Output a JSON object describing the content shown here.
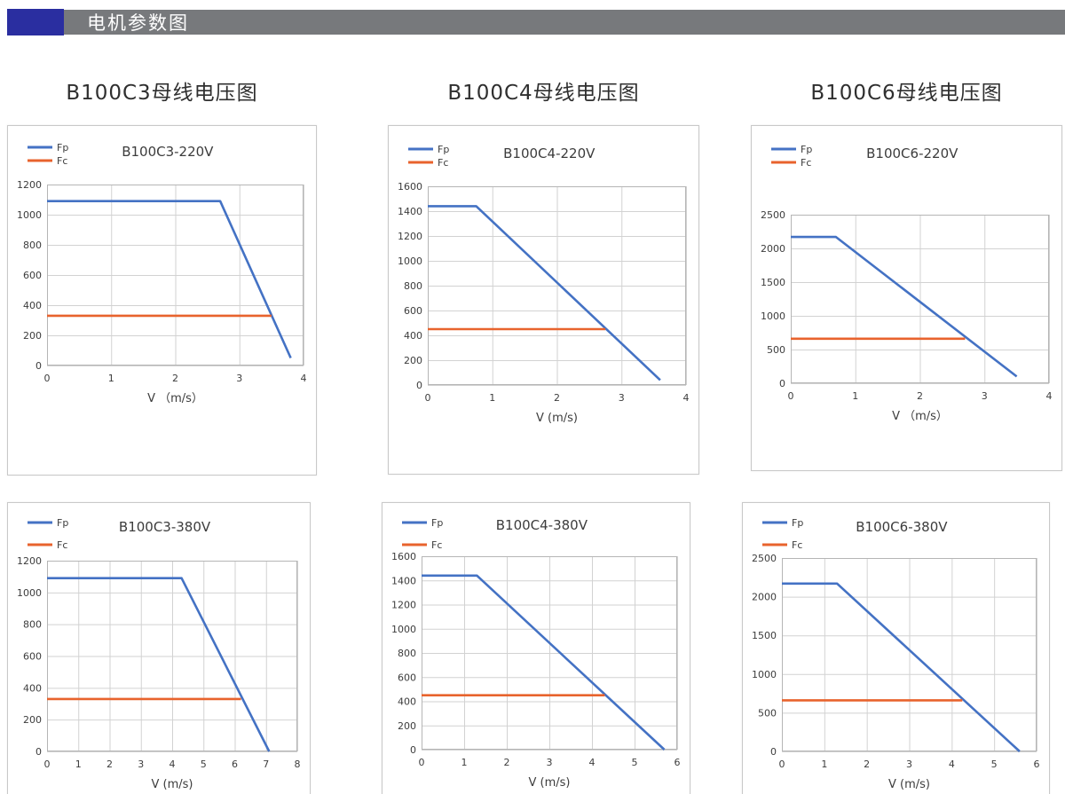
{
  "header": {
    "title": "电机参数图",
    "bar_color": "#77797c",
    "accent_color": "#2a2ea0"
  },
  "section_titles": [
    "B100C3母线电压图",
    "B100C4母线电压图",
    "B100C6母线电压图"
  ],
  "colors": {
    "fp": "#4472C4",
    "fc": "#E8632D",
    "grid": "#d2d2d2",
    "plot_border": "#b5b5b5",
    "tick_text": "#3c3c3c"
  },
  "legend": {
    "fp_label": "Fp",
    "fc_label": "Fc"
  },
  "chart_data": [
    {
      "type": "line",
      "title": "B100C3-220V",
      "xlabel": "V （m/s）",
      "xlim": [
        0,
        4
      ],
      "xticks": [
        0,
        1,
        2,
        3,
        4
      ],
      "ylim": [
        0,
        1200
      ],
      "yticks": [
        0,
        200,
        400,
        600,
        800,
        1000,
        1200
      ],
      "grid": true,
      "legend_position": "top-left",
      "series": [
        {
          "name": "Fp",
          "color": "fp",
          "points": [
            [
              0,
              1090
            ],
            [
              2.7,
              1090
            ],
            [
              3.8,
              50
            ]
          ]
        },
        {
          "name": "Fc",
          "color": "fc",
          "points": [
            [
              0,
              330
            ],
            [
              3.5,
              330
            ]
          ]
        }
      ]
    },
    {
      "type": "line",
      "title": "B100C4-220V",
      "xlabel": "V (m/s)",
      "xlim": [
        0,
        4
      ],
      "xticks": [
        0,
        1,
        2,
        3,
        4
      ],
      "ylim": [
        0,
        1600
      ],
      "yticks": [
        0,
        200,
        400,
        600,
        800,
        1000,
        1200,
        1400,
        1600
      ],
      "grid": true,
      "legend_position": "top-left",
      "series": [
        {
          "name": "Fp",
          "color": "fp",
          "points": [
            [
              0,
              1440
            ],
            [
              0.75,
              1440
            ],
            [
              3.6,
              40
            ]
          ]
        },
        {
          "name": "Fc",
          "color": "fc",
          "points": [
            [
              0,
              450
            ],
            [
              2.75,
              450
            ]
          ]
        }
      ]
    },
    {
      "type": "line",
      "title": "B100C6-220V",
      "xlabel": "V （m/s）",
      "xlim": [
        0,
        4
      ],
      "xticks": [
        0,
        1,
        2,
        3,
        4
      ],
      "ylim": [
        0,
        2500
      ],
      "yticks": [
        0,
        500,
        1000,
        1500,
        2000,
        2500
      ],
      "grid": true,
      "legend_position": "top-left",
      "series": [
        {
          "name": "Fp",
          "color": "fp",
          "points": [
            [
              0,
              2170
            ],
            [
              0.7,
              2170
            ],
            [
              3.5,
              100
            ]
          ]
        },
        {
          "name": "Fc",
          "color": "fc",
          "points": [
            [
              0,
              660
            ],
            [
              2.7,
              660
            ]
          ]
        }
      ]
    },
    {
      "type": "line",
      "title": "B100C3-380V",
      "xlabel": "V (m/s)",
      "xlim": [
        0,
        8
      ],
      "xticks": [
        0,
        1,
        2,
        3,
        4,
        5,
        6,
        7,
        8
      ],
      "ylim": [
        0,
        1200
      ],
      "yticks": [
        0,
        200,
        400,
        600,
        800,
        1000,
        1200
      ],
      "grid": true,
      "legend_position": "top-left",
      "series": [
        {
          "name": "Fp",
          "color": "fp",
          "points": [
            [
              0,
              1090
            ],
            [
              4.3,
              1090
            ],
            [
              7.1,
              0
            ]
          ]
        },
        {
          "name": "Fc",
          "color": "fc",
          "points": [
            [
              0,
              330
            ],
            [
              6.2,
              330
            ]
          ]
        }
      ]
    },
    {
      "type": "line",
      "title": "B100C4-380V",
      "xlabel": "V (m/s)",
      "xlim": [
        0,
        6
      ],
      "xticks": [
        0,
        1,
        2,
        3,
        4,
        5,
        6
      ],
      "ylim": [
        0,
        1600
      ],
      "yticks": [
        0,
        200,
        400,
        600,
        800,
        1000,
        1200,
        1400,
        1600
      ],
      "grid": true,
      "legend_position": "top-left",
      "series": [
        {
          "name": "Fp",
          "color": "fp",
          "points": [
            [
              0,
              1440
            ],
            [
              1.3,
              1440
            ],
            [
              5.7,
              0
            ]
          ]
        },
        {
          "name": "Fc",
          "color": "fc",
          "points": [
            [
              0,
              450
            ],
            [
              4.3,
              450
            ]
          ]
        }
      ]
    },
    {
      "type": "line",
      "title": "B100C6-380V",
      "xlabel": "V (m/s)",
      "xlim": [
        0,
        6
      ],
      "xticks": [
        0,
        1,
        2,
        3,
        4,
        5,
        6
      ],
      "ylim": [
        0,
        2500
      ],
      "yticks": [
        0,
        500,
        1000,
        1500,
        2000,
        2500
      ],
      "grid": true,
      "legend_position": "top-left",
      "series": [
        {
          "name": "Fp",
          "color": "fp",
          "points": [
            [
              0,
              2170
            ],
            [
              1.3,
              2170
            ],
            [
              5.6,
              0
            ]
          ]
        },
        {
          "name": "Fc",
          "color": "fc",
          "points": [
            [
              0,
              660
            ],
            [
              4.25,
              660
            ]
          ]
        }
      ]
    }
  ]
}
